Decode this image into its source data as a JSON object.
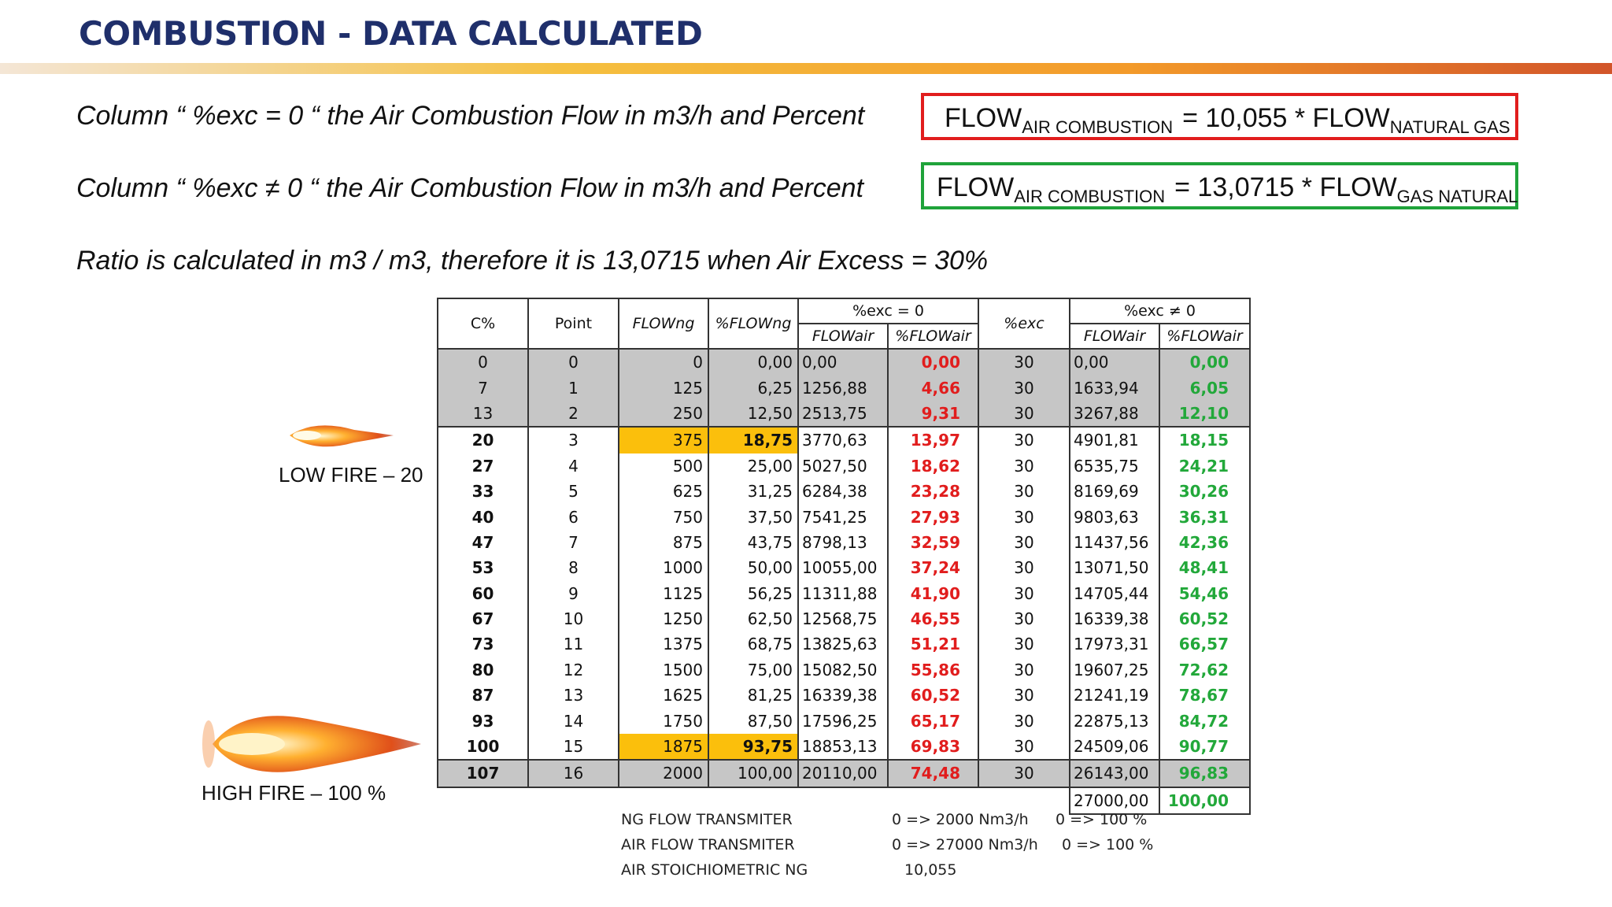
{
  "header": {
    "title": "COMBUSTION - DATA CALCULATED"
  },
  "notes": [
    "Column “ %exc = 0 “ the Air Combustion Flow in m3/h and Percent",
    "Column “ %exc ≠ 0 “ the Air Combustion Flow in m3/h and Percent",
    "Ratio is calculated in m3 / m3, therefore it is 13,0715 when Air Excess = 30%"
  ],
  "formulas": [
    {
      "parts": [
        "FLOW",
        "AIR COMBUSTION",
        "= 10,055 * FLOW",
        "NATURAL GAS"
      ]
    },
    {
      "parts": [
        "FLOW",
        "AIR COMBUSTION",
        "= 13,0715 * FLOW",
        "GAS NATURAL"
      ]
    }
  ],
  "flames": [
    {
      "label": "LOW FIRE – 20"
    },
    {
      "label": "HIGH FIRE – 100 %"
    }
  ],
  "table": {
    "header_top": [
      "C%",
      "Point",
      "FLOWng",
      "%FLOWng",
      "%exc = 0",
      "%exc",
      "%exc ≠ 0"
    ],
    "header_sub": [
      "FLOWair",
      "%FLOWair",
      "FLOWair",
      "%FLOWair"
    ],
    "rows": [
      [
        "0",
        "0",
        "0",
        "0,00",
        "0,00",
        "0,00",
        "30",
        "0,00",
        "0,00"
      ],
      [
        "7",
        "1",
        "125",
        "6,25",
        "1256,88",
        "4,66",
        "30",
        "1633,94",
        "6,05"
      ],
      [
        "13",
        "2",
        "250",
        "12,50",
        "2513,75",
        "9,31",
        "30",
        "3267,88",
        "12,10"
      ],
      [
        "20",
        "3",
        "375",
        "18,75",
        "3770,63",
        "13,97",
        "30",
        "4901,81",
        "18,15"
      ],
      [
        "27",
        "4",
        "500",
        "25,00",
        "5027,50",
        "18,62",
        "30",
        "6535,75",
        "24,21"
      ],
      [
        "33",
        "5",
        "625",
        "31,25",
        "6284,38",
        "23,28",
        "30",
        "8169,69",
        "30,26"
      ],
      [
        "40",
        "6",
        "750",
        "37,50",
        "7541,25",
        "27,93",
        "30",
        "9803,63",
        "36,31"
      ],
      [
        "47",
        "7",
        "875",
        "43,75",
        "8798,13",
        "32,59",
        "30",
        "11437,56",
        "42,36"
      ],
      [
        "53",
        "8",
        "1000",
        "50,00",
        "10055,00",
        "37,24",
        "30",
        "13071,50",
        "48,41"
      ],
      [
        "60",
        "9",
        "1125",
        "56,25",
        "11311,88",
        "41,90",
        "30",
        "14705,44",
        "54,46"
      ],
      [
        "67",
        "10",
        "1250",
        "62,50",
        "12568,75",
        "46,55",
        "30",
        "16339,38",
        "60,52"
      ],
      [
        "73",
        "11",
        "1375",
        "68,75",
        "13825,63",
        "51,21",
        "30",
        "17973,31",
        "66,57"
      ],
      [
        "80",
        "12",
        "1500",
        "75,00",
        "15082,50",
        "55,86",
        "30",
        "19607,25",
        "72,62"
      ],
      [
        "87",
        "13",
        "1625",
        "81,25",
        "16339,38",
        "60,52",
        "30",
        "21241,19",
        "78,67"
      ],
      [
        "93",
        "14",
        "1750",
        "87,50",
        "17596,25",
        "65,17",
        "30",
        "22875,13",
        "84,72"
      ],
      [
        "100",
        "15",
        "1875",
        "93,75",
        "18853,13",
        "69,83",
        "30",
        "24509,06",
        "90,77"
      ],
      [
        "107",
        "16",
        "2000",
        "100,00",
        "20110,00",
        "74,48",
        "30",
        "26143,00",
        "96,83"
      ]
    ],
    "extra_row": [
      "27000,00",
      "100,00"
    ]
  },
  "footnotes": [
    [
      "NG FLOW TRANSMITER",
      "0 => 2000 Nm3/h",
      "0 => 100 %"
    ],
    [
      "AIR FLOW TRANSMITER",
      "0 => 27000 Nm3/h",
      "0 => 100 %"
    ],
    [
      "AIR STOICHIOMETRIC NG",
      "10,055"
    ]
  ]
}
